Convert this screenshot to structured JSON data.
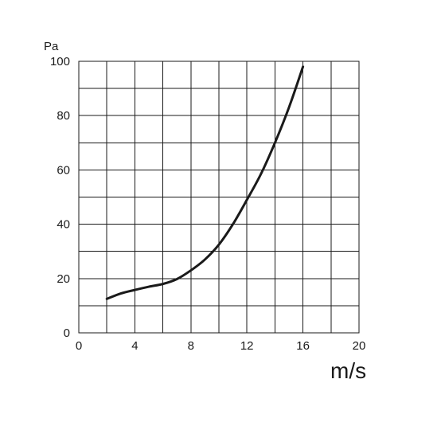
{
  "chart_data": {
    "type": "line",
    "title": "",
    "xlabel": "m/s",
    "ylabel": "Pa",
    "xlim": [
      0,
      20
    ],
    "ylim": [
      0,
      100
    ],
    "x_ticks": [
      "0",
      "4",
      "8",
      "12",
      "16",
      "20"
    ],
    "y_ticks": [
      "0",
      "20",
      "40",
      "60",
      "80",
      "100"
    ],
    "grid": true,
    "legend": "none",
    "line_color": "#1a1a1a",
    "series": [
      {
        "x": [
          2,
          3,
          4,
          5,
          6,
          7,
          8,
          9,
          10,
          11,
          12,
          13,
          14,
          15,
          16
        ],
        "y": [
          12.5,
          14.5,
          15.8,
          17,
          18,
          19.8,
          23,
          27,
          32.5,
          40,
          49,
          58.5,
          70,
          83,
          98
        ]
      }
    ]
  }
}
